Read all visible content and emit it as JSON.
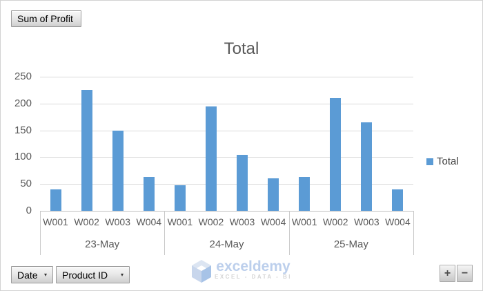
{
  "chart_data": {
    "type": "bar",
    "title": "Total",
    "categories": [
      "W001",
      "W002",
      "W003",
      "W004"
    ],
    "group_labels": [
      "23-May",
      "24-May",
      "25-May"
    ],
    "series": [
      {
        "name": "Total",
        "values": [
          [
            40,
            225,
            150,
            63
          ],
          [
            48,
            195,
            105,
            60
          ],
          [
            63,
            210,
            165,
            40
          ]
        ]
      }
    ],
    "ylim": [
      0,
      250
    ],
    "ytick_step": 50,
    "grid": true,
    "legend_position": "right",
    "bar_color": "#5B9BD5"
  },
  "pivot_buttons": {
    "value_field": "Sum of Profit",
    "date_field": "Date",
    "product_field": "Product ID",
    "dropdown_icon": "▾",
    "expand_label": "+",
    "collapse_label": "−"
  },
  "legend": {
    "label": "Total"
  },
  "watermark": {
    "brand": "exceldemy",
    "tagline": "EXCEL - DATA - BI"
  }
}
